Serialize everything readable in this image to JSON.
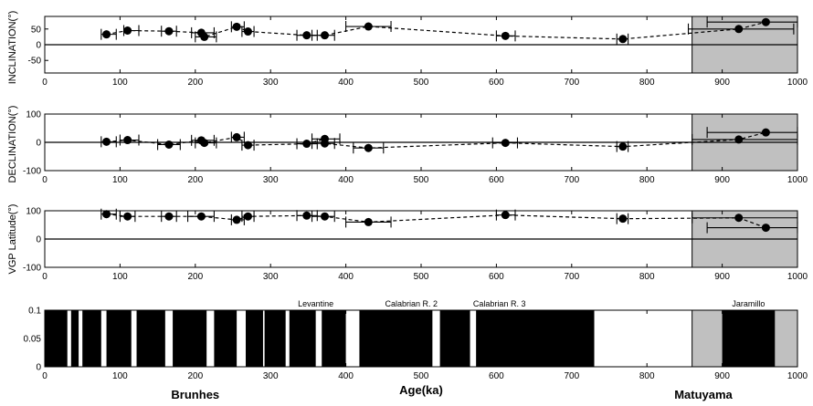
{
  "chart_data": [
    {
      "type": "scatter",
      "ylabel": "INCLINATION(°)",
      "xlim": [
        0,
        1000
      ],
      "ylim": [
        -90,
        90
      ],
      "yticks": [
        -50,
        0,
        50
      ],
      "xticks": [
        100,
        200,
        300,
        400,
        500,
        600,
        700,
        800,
        900,
        1000
      ],
      "shaded_x": [
        860,
        1000
      ],
      "zero_line": true,
      "points": [
        {
          "x": 82,
          "y": 33,
          "xerr": [
            75,
            95
          ]
        },
        {
          "x": 110,
          "y": 45,
          "xerr": [
            105,
            125
          ]
        },
        {
          "x": 165,
          "y": 43,
          "xerr": [
            155,
            175
          ]
        },
        {
          "x": 208,
          "y": 38,
          "xerr": [
            195,
            225
          ]
        },
        {
          "x": 212,
          "y": 25,
          "xerr": [
            200,
            228
          ]
        },
        {
          "x": 255,
          "y": 57,
          "xerr": [
            248,
            265
          ]
        },
        {
          "x": 270,
          "y": 42,
          "xerr": [
            262,
            278
          ]
        },
        {
          "x": 348,
          "y": 30,
          "xerr": [
            335,
            362
          ]
        },
        {
          "x": 372,
          "y": 30,
          "xerr": [
            355,
            385
          ]
        },
        {
          "x": 430,
          "y": 58,
          "xerr": [
            400,
            460
          ]
        },
        {
          "x": 612,
          "y": 28,
          "xerr": [
            600,
            625
          ]
        },
        {
          "x": 768,
          "y": 18,
          "xerr": [
            760,
            775
          ]
        },
        {
          "x": 922,
          "y": 50,
          "xerr": [
            855,
            995
          ]
        },
        {
          "x": 958,
          "y": 72,
          "xerr": [
            880,
            1000
          ]
        }
      ]
    },
    {
      "type": "scatter",
      "ylabel": "DECLINATION(°)",
      "xlim": [
        0,
        1000
      ],
      "ylim": [
        -100,
        100
      ],
      "yticks": [
        -100,
        0,
        100
      ],
      "xticks": [
        100,
        200,
        300,
        400,
        500,
        600,
        700,
        800,
        900,
        1000
      ],
      "shaded_x": [
        860,
        1000
      ],
      "zero_line": true,
      "points": [
        {
          "x": 82,
          "y": 2,
          "xerr": [
            75,
            95
          ]
        },
        {
          "x": 110,
          "y": 8,
          "xerr": [
            100,
            125
          ]
        },
        {
          "x": 165,
          "y": -8,
          "xerr": [
            150,
            180
          ]
        },
        {
          "x": 208,
          "y": 7,
          "xerr": [
            195,
            225
          ]
        },
        {
          "x": 212,
          "y": -2,
          "xerr": [
            200,
            228
          ]
        },
        {
          "x": 255,
          "y": 18,
          "xerr": [
            248,
            265
          ]
        },
        {
          "x": 270,
          "y": -10,
          "xerr": [
            262,
            278
          ]
        },
        {
          "x": 348,
          "y": -5,
          "xerr": [
            335,
            362
          ]
        },
        {
          "x": 372,
          "y": 12,
          "xerr": [
            355,
            392
          ]
        },
        {
          "x": 372,
          "y": -4,
          "xerr": [
            355,
            385
          ]
        },
        {
          "x": 430,
          "y": -20,
          "xerr": [
            410,
            450
          ]
        },
        {
          "x": 612,
          "y": -2,
          "xerr": [
            595,
            628
          ]
        },
        {
          "x": 768,
          "y": -15,
          "xerr": [
            760,
            775
          ]
        },
        {
          "x": 922,
          "y": 10,
          "xerr": [
            860,
            1000
          ]
        },
        {
          "x": 958,
          "y": 35,
          "xerr": [
            880,
            1000
          ]
        }
      ]
    },
    {
      "type": "scatter",
      "ylabel": "VGP Latitude(°)",
      "xlim": [
        0,
        1000
      ],
      "ylim": [
        -100,
        100
      ],
      "yticks": [
        -100,
        0,
        100
      ],
      "xticks": [
        100,
        200,
        300,
        400,
        500,
        600,
        700,
        800,
        900,
        1000
      ],
      "shaded_x": [
        860,
        1000
      ],
      "zero_line": true,
      "points": [
        {
          "x": 82,
          "y": 88,
          "xerr": [
            75,
            95
          ]
        },
        {
          "x": 110,
          "y": 80,
          "xerr": [
            100,
            120
          ]
        },
        {
          "x": 165,
          "y": 80,
          "xerr": [
            155,
            175
          ]
        },
        {
          "x": 208,
          "y": 80,
          "xerr": [
            190,
            225
          ]
        },
        {
          "x": 255,
          "y": 68,
          "xerr": [
            248,
            265
          ]
        },
        {
          "x": 270,
          "y": 80,
          "xerr": [
            262,
            278
          ]
        },
        {
          "x": 348,
          "y": 83,
          "xerr": [
            335,
            362
          ]
        },
        {
          "x": 372,
          "y": 80,
          "xerr": [
            355,
            385
          ]
        },
        {
          "x": 430,
          "y": 60,
          "xerr": [
            400,
            460
          ]
        },
        {
          "x": 612,
          "y": 85,
          "xerr": [
            600,
            625
          ]
        },
        {
          "x": 768,
          "y": 72,
          "xerr": [
            760,
            775
          ]
        },
        {
          "x": 922,
          "y": 75,
          "xerr": [
            860,
            1000
          ]
        },
        {
          "x": 958,
          "y": 40,
          "xerr": [
            880,
            1000
          ]
        }
      ]
    },
    {
      "type": "bar",
      "xlim": [
        0,
        1000
      ],
      "ylim": [
        0,
        0.1
      ],
      "yticks": [
        "0",
        "0.05",
        "0.1"
      ],
      "xticks": [
        100,
        200,
        300,
        400,
        500,
        600,
        700,
        800,
        900,
        1000
      ],
      "xlabel": "Age(ka)",
      "shaded_x": [
        860,
        1000
      ],
      "segments": [
        [
          0,
          30
        ],
        [
          35,
          45
        ],
        [
          50,
          75
        ],
        [
          82,
          115
        ],
        [
          122,
          160
        ],
        [
          170,
          215
        ],
        [
          225,
          255
        ],
        [
          267,
          290
        ],
        [
          292,
          320
        ],
        [
          325,
          360
        ],
        [
          368,
          400
        ],
        [
          418,
          515
        ],
        [
          525,
          565
        ],
        [
          573,
          730
        ],
        [
          900,
          970
        ]
      ],
      "annotations": [
        {
          "x": 360,
          "text": "Levantine"
        },
        {
          "x": 487,
          "text": "Calabrian R. 2"
        },
        {
          "x": 604,
          "text": "Calabrian R. 3"
        },
        {
          "x": 935,
          "text": "Jaramillo"
        }
      ],
      "chron_labels": [
        {
          "x": 200,
          "text": "Brunhes"
        },
        {
          "x": 875,
          "text": "Matuyama"
        }
      ]
    }
  ]
}
